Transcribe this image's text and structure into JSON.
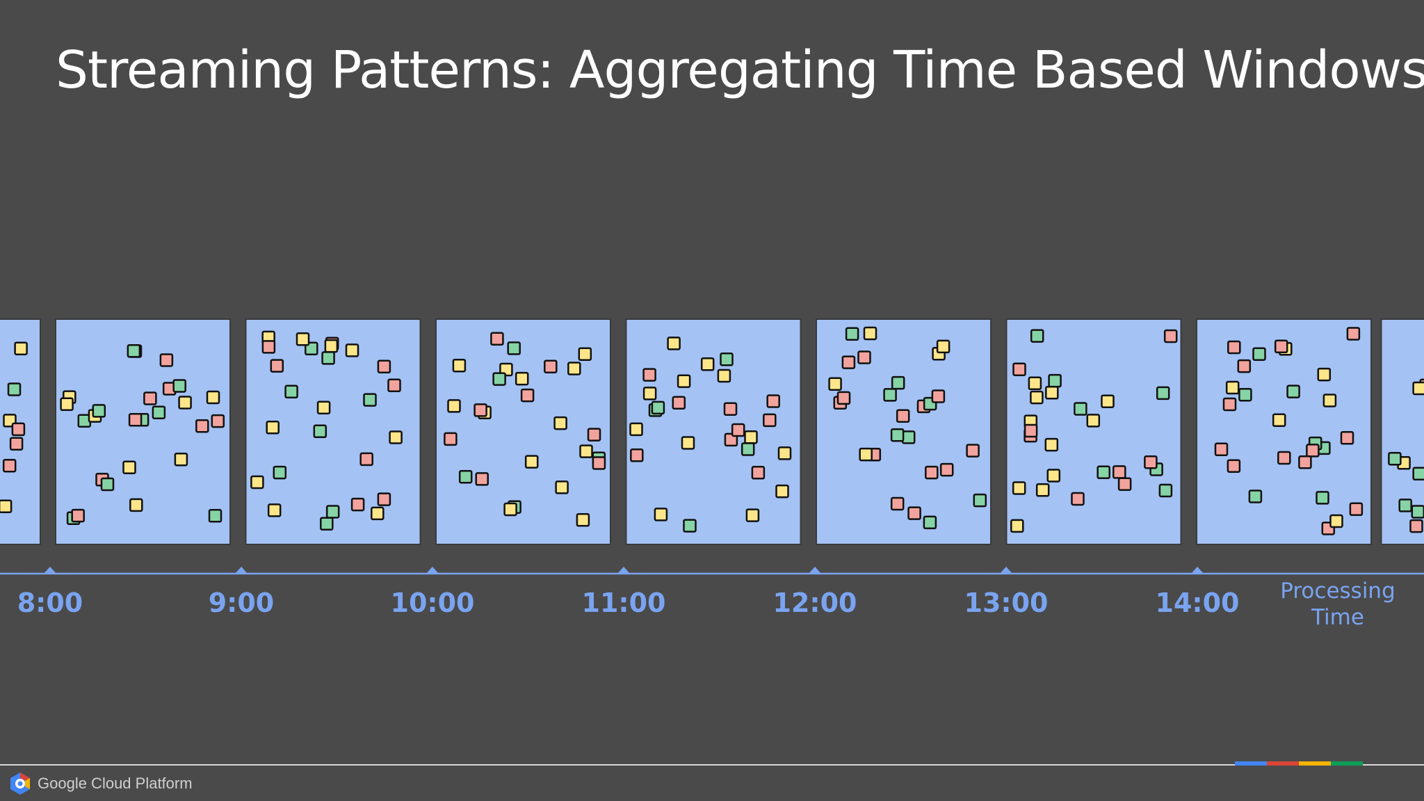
{
  "slide": {
    "title": "Streaming Patterns: Aggregating Time Based Windows"
  },
  "axis": {
    "label_line1": "Processing",
    "label_line2": "Time",
    "ticks": [
      "8:00",
      "9:00",
      "10:00",
      "11:00",
      "12:00",
      "13:00",
      "14:00"
    ],
    "tick_positions_hours": [
      8,
      9,
      10,
      11,
      12,
      13,
      14
    ]
  },
  "windows": {
    "full_window_count": 7,
    "partial_left": true,
    "partial_right": true
  },
  "footer": {
    "brand": "Google Cloud Platform",
    "icon": "google-cloud-hexagon-icon",
    "bar_colors": [
      "#4285f4",
      "#db4437",
      "#f4b400",
      "#0f9d58"
    ]
  },
  "colors": {
    "background": "#4a4a4b",
    "window_fill": "#a4c2f4",
    "axis": "#7aa4f0",
    "element_red": "#f2a39e",
    "element_yellow": "#fde68a",
    "element_green": "#86d3a6"
  }
}
